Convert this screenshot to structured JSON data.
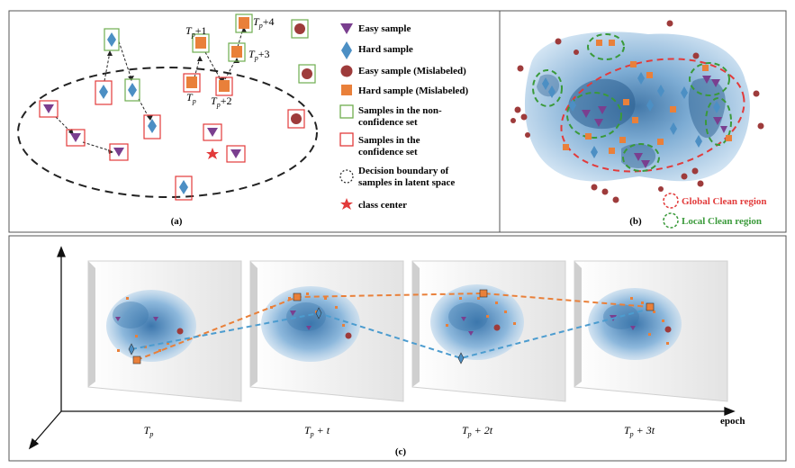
{
  "panel_a": {
    "label": "(a)",
    "tp_labels": {
      "tp": "T",
      "tp1": "+1",
      "tp2": "+2",
      "tp3": "+3",
      "tp4": "+4",
      "sub": "p"
    },
    "legend": [
      {
        "icon": "purple-triangle-icon",
        "text": "Easy sample"
      },
      {
        "icon": "blue-diamond-icon",
        "text": "Hard sample"
      },
      {
        "icon": "brown-circle-icon",
        "text": "Easy sample (Mislabeled)"
      },
      {
        "icon": "orange-square-icon",
        "text": "Hard sample (Mislabeled)"
      },
      {
        "icon": "green-box-icon",
        "text": "Samples in the non-",
        "text2": "confidence set"
      },
      {
        "icon": "red-box-icon",
        "text": "Samples in the",
        "text2": "confidence set"
      },
      {
        "icon": "dashed-circle-icon",
        "text": "Decision boundary of",
        "text2": "samples in latent space"
      },
      {
        "icon": "red-star-icon",
        "text": "class center"
      }
    ]
  },
  "panel_b": {
    "label": "(b)",
    "legend": [
      {
        "icon": "red-dashed-circle-icon",
        "text": "Global Clean region"
      },
      {
        "icon": "green-dashed-circle-icon",
        "text": "Local Clean region"
      }
    ]
  },
  "panel_c": {
    "label": "(c)",
    "axis_label": "epoch",
    "time_labels": [
      {
        "main": "T",
        "sub": "p",
        "suffix": ""
      },
      {
        "main": "T",
        "sub": "p",
        "suffix": " + t"
      },
      {
        "main": "T",
        "sub": "p",
        "suffix": " + 2t"
      },
      {
        "main": "T",
        "sub": "p",
        "suffix": " + 3t"
      }
    ]
  },
  "colors": {
    "purple": "#7a3f8f",
    "blue": "#4c8fc4",
    "brown": "#9e3b3b",
    "orange": "#e9803a",
    "green": "#4a9a3a",
    "red": "#e23b3b",
    "frame": "#555555"
  }
}
